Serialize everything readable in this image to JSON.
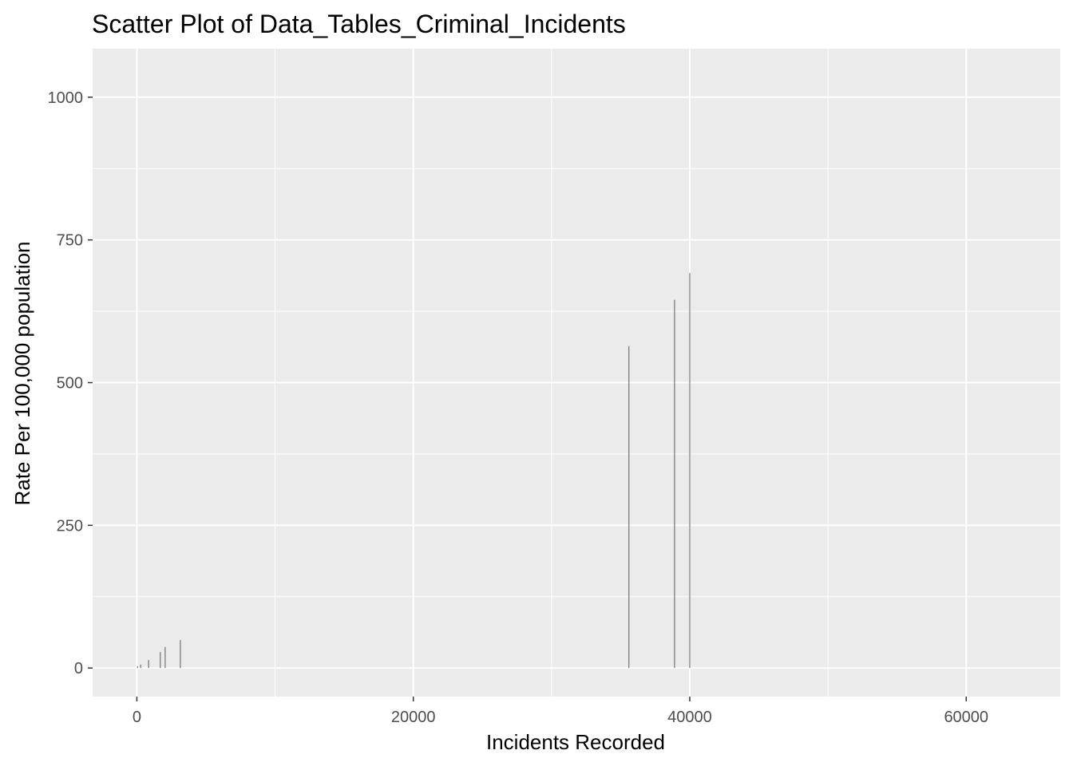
{
  "chart_data": {
    "type": "bar",
    "title": "Scatter Plot of Data_Tables_Criminal_Incidents",
    "xlabel": "Incidents Recorded",
    "ylabel": "Rate Per 100,000 population",
    "xlim": [
      -3200,
      66800
    ],
    "ylim": [
      -50,
      1085
    ],
    "x_ticks": [
      0,
      20000,
      40000,
      60000
    ],
    "x_tick_labels": [
      "0",
      "20000",
      "40000",
      "60000"
    ],
    "x_minor_ticks": [
      10000,
      30000,
      50000
    ],
    "y_ticks": [
      0,
      250,
      500,
      750,
      1000
    ],
    "y_tick_labels": [
      "0",
      "250",
      "500",
      "750",
      "1000"
    ],
    "y_minor_ticks": [
      125,
      375,
      625,
      875
    ],
    "grid": true,
    "legend": "none",
    "bar_color": "#595959",
    "panel_background": "#ebebeb",
    "points": [
      {
        "x": 50,
        "y": 3
      },
      {
        "x": 280,
        "y": 6
      },
      {
        "x": 850,
        "y": 14
      },
      {
        "x": 1700,
        "y": 28
      },
      {
        "x": 2050,
        "y": 37
      },
      {
        "x": 3150,
        "y": 49
      },
      {
        "x": 35600,
        "y": 564
      },
      {
        "x": 38900,
        "y": 645
      },
      {
        "x": 40000,
        "y": 692
      }
    ]
  }
}
